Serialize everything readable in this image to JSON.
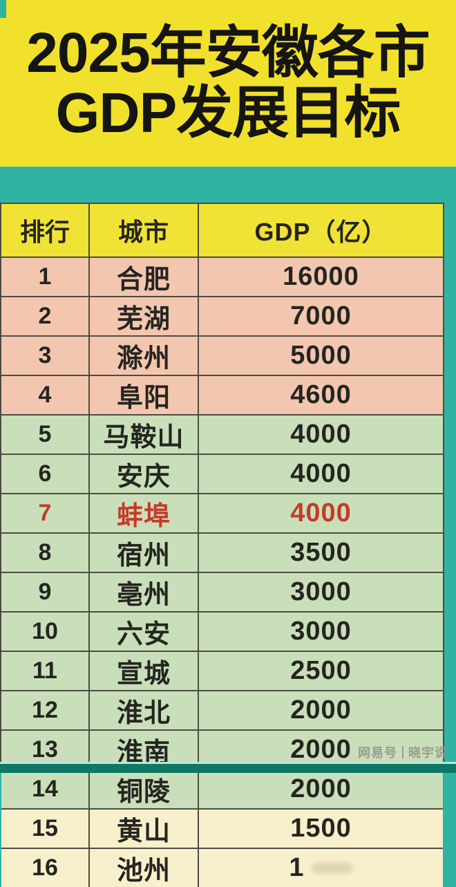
{
  "banner": {
    "title_line1": "2025年安徽各市",
    "title_line2": "GDP发展目标"
  },
  "table": {
    "headers": {
      "rank": "排行",
      "city": "城市",
      "gdp": "GDP（亿）"
    },
    "rows": [
      {
        "rank": "1",
        "city": "合肥",
        "gdp": "16000",
        "group": "pink"
      },
      {
        "rank": "2",
        "city": "芜湖",
        "gdp": "7000",
        "group": "pink"
      },
      {
        "rank": "3",
        "city": "滁州",
        "gdp": "5000",
        "group": "pink"
      },
      {
        "rank": "4",
        "city": "阜阳",
        "gdp": "4600",
        "group": "pink"
      },
      {
        "rank": "5",
        "city": "马鞍山",
        "gdp": "4000",
        "group": "green"
      },
      {
        "rank": "6",
        "city": "安庆",
        "gdp": "4000",
        "group": "green"
      },
      {
        "rank": "7",
        "city": "蚌埠",
        "gdp": "4000",
        "group": "green",
        "highlight": true
      },
      {
        "rank": "8",
        "city": "宿州",
        "gdp": "3500",
        "group": "green"
      },
      {
        "rank": "9",
        "city": "亳州",
        "gdp": "3000",
        "group": "green"
      },
      {
        "rank": "10",
        "city": "六安",
        "gdp": "3000",
        "group": "green"
      },
      {
        "rank": "11",
        "city": "宣城",
        "gdp": "2500",
        "group": "green"
      },
      {
        "rank": "12",
        "city": "淮北",
        "gdp": "2000",
        "group": "green"
      },
      {
        "rank": "13",
        "city": "淮南",
        "gdp": "2000",
        "group": "green"
      },
      {
        "rank": "14",
        "city": "铜陵",
        "gdp": "2000",
        "group": "green"
      },
      {
        "rank": "15",
        "city": "黄山",
        "gdp": "1500",
        "group": "cream"
      },
      {
        "rank": "16",
        "city": "池州",
        "gdp": "1",
        "group": "cream",
        "obscured": true
      }
    ]
  },
  "watermark": {
    "brand": "网易号",
    "author": "晓宇说"
  },
  "colors": {
    "background_teal": "#2fb4a3",
    "banner_yellow": "#f2e12c",
    "header_yellow": "#f0e335",
    "row_pink": "#f3c7af",
    "row_green": "#c9dfba",
    "row_cream": "#f8f0cc",
    "highlight_red": "#c53a28",
    "text_dark": "#252520",
    "bottom_band": "#0e7766"
  },
  "chart_data": {
    "type": "table",
    "title": "2025年安徽各市GDP发展目标",
    "columns": [
      "排行",
      "城市",
      "GDP（亿）"
    ],
    "rows": [
      [
        1,
        "合肥",
        16000
      ],
      [
        2,
        "芜湖",
        7000
      ],
      [
        3,
        "滁州",
        5000
      ],
      [
        4,
        "阜阳",
        4600
      ],
      [
        5,
        "马鞍山",
        4000
      ],
      [
        6,
        "安庆",
        4000
      ],
      [
        7,
        "蚌埠",
        4000
      ],
      [
        8,
        "宿州",
        3500
      ],
      [
        9,
        "亳州",
        3000
      ],
      [
        10,
        "六安",
        3000
      ],
      [
        11,
        "宣城",
        2500
      ],
      [
        12,
        "淮北",
        2000
      ],
      [
        13,
        "淮南",
        2000
      ],
      [
        14,
        "铜陵",
        2000
      ],
      [
        15,
        "黄山",
        1500
      ],
      [
        16,
        "池州",
        null
      ]
    ],
    "notes": "Row 16 (池州) GDP value is smudged out in the image; only leading digit 1 is visible. Row 7 (蚌埠) is rendered entirely in red."
  }
}
